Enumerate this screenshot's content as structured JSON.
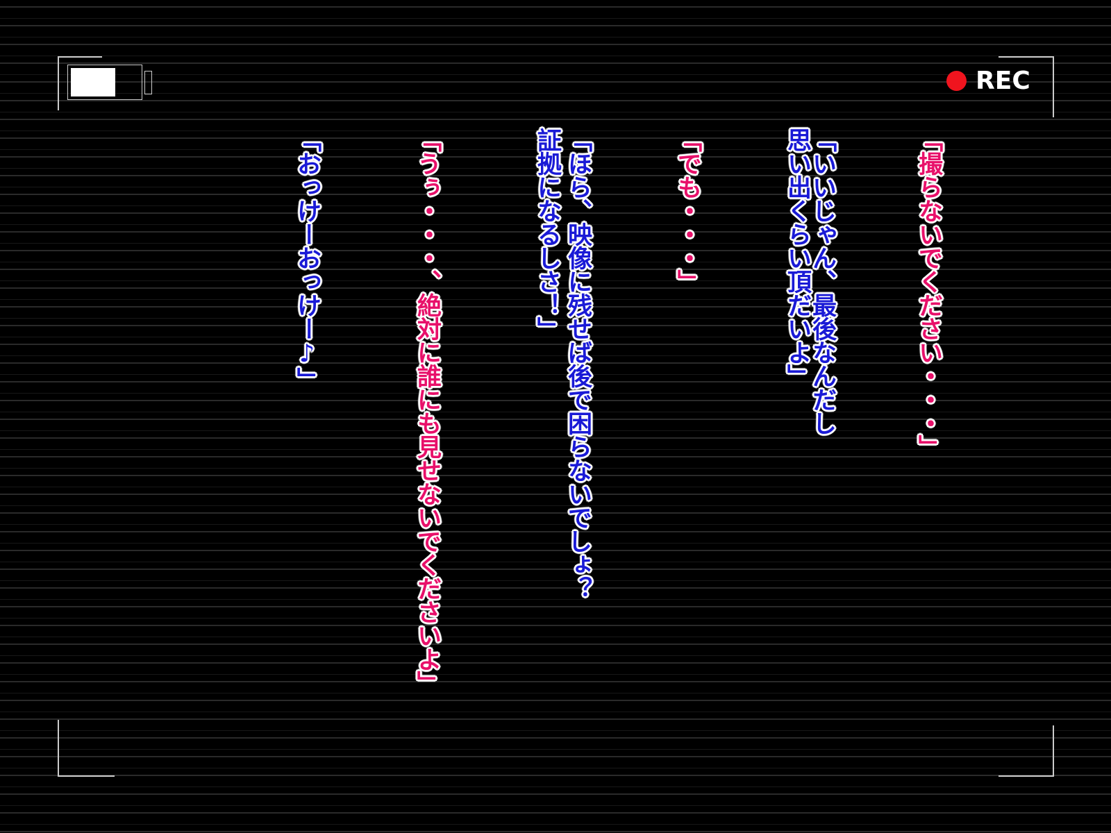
{
  "hud": {
    "rec_label": "REC"
  },
  "dialogue": [
    {
      "color": "#e8106a",
      "lines": [
        "「撮らないでください・・・」"
      ]
    },
    {
      "color": "#1a1ad6",
      "lines": [
        "「いいじゃん、最後なんだし",
        "思い出くらい頂だいよ」"
      ]
    },
    {
      "color": "#e8106a",
      "lines": [
        "「でも・・・」"
      ]
    },
    {
      "color": "#1a1ad6",
      "lines": [
        "「ほら、映像に残せば後で困らないでしょ？",
        "証拠になるしさ！」"
      ]
    },
    {
      "color": "#e8106a",
      "lines": [
        "「うぅ・・・、絶対に誰にも見せないでくださいよ」"
      ]
    },
    {
      "color": "#1a1ad6",
      "lines": [
        "「おっけーおっけー♪」"
      ]
    }
  ]
}
